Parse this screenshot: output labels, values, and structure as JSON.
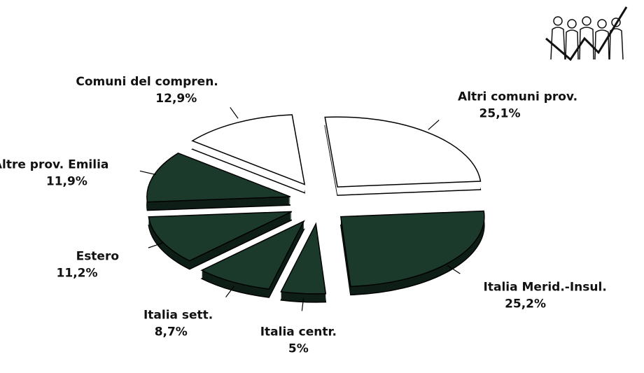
{
  "chart_data": {
    "type": "pie",
    "categories": [
      "Altri comuni prov.",
      "Italia Merid.-Insul.",
      "Italia centr.",
      "Italia sett.",
      "Estero",
      "Altre prov. Emilia",
      "Comuni del compren."
    ],
    "values": [
      25.1,
      25.2,
      5,
      8.7,
      11.2,
      11.9,
      12.9
    ],
    "value_labels": [
      "25,1%",
      "25,2%",
      "5%",
      "8,7%",
      "11,2%",
      "11,9%",
      "12,9%"
    ],
    "colors": [
      "#ffffff",
      "#1c3a2c",
      "#1c3a2c",
      "#1c3a2c",
      "#1c3a2c",
      "#1c3a2c",
      "#ffffff"
    ]
  }
}
